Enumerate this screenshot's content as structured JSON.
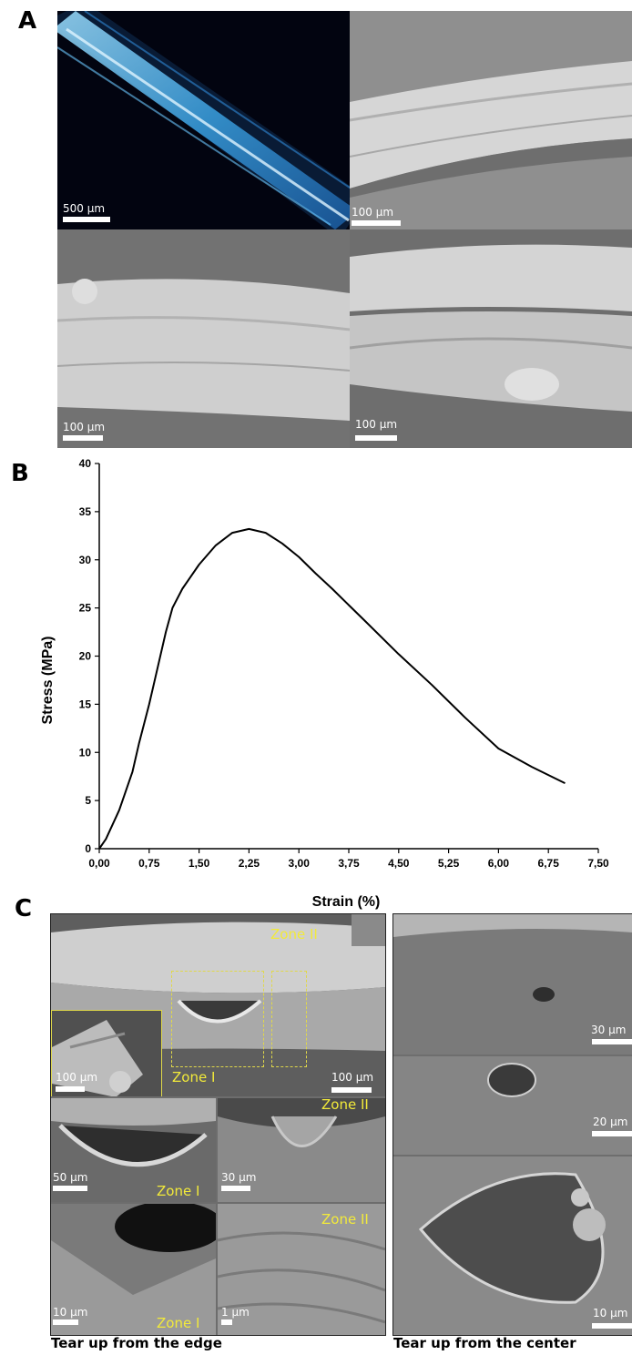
{
  "panels": {
    "a": {
      "letter": "A",
      "images": [
        {
          "scale": "500 µm",
          "kind": "optical"
        },
        {
          "scale": "100 µm",
          "kind": "sem"
        },
        {
          "scale": "100 µm",
          "kind": "sem"
        },
        {
          "scale": "100 µm",
          "kind": "sem"
        }
      ]
    },
    "b": {
      "letter": "B"
    },
    "c": {
      "letter": "C",
      "zone_labels": {
        "zone1": "Zone I",
        "zone2": "Zone II"
      },
      "left_images": [
        {
          "scale": "100 µm",
          "inset_scale": "100 µm"
        },
        {
          "scale": "50 µm"
        },
        {
          "scale": "30 µm"
        },
        {
          "scale": "10 µm"
        },
        {
          "scale": "1 µm"
        }
      ],
      "right_images": [
        {
          "scale": "30 µm"
        },
        {
          "scale": "20 µm"
        },
        {
          "scale": "10 µm"
        }
      ],
      "caption_left": "Tear up from the edge",
      "caption_right": "Tear up from the center"
    }
  },
  "colors": {
    "optical_fiber": "#4fb3e8",
    "zone_text": "#f2ea3a",
    "zone_box": "#e0d84a"
  },
  "chart_data": {
    "type": "line",
    "xlabel": "Strain (%)",
    "ylabel": "Stress (MPa)",
    "xlim": [
      0,
      7.5
    ],
    "ylim": [
      0,
      40
    ],
    "xticks": [
      "0,00",
      "0,75",
      "1,50",
      "2,25",
      "3,00",
      "3,75",
      "4,50",
      "5,25",
      "6,00",
      "6,75",
      "7,50"
    ],
    "yticks": [
      "0",
      "5",
      "10",
      "15",
      "20",
      "25",
      "30",
      "35",
      "40"
    ],
    "series": [
      {
        "x": [
          0.0,
          0.1,
          0.2,
          0.3,
          0.4,
          0.5,
          0.6,
          0.75,
          0.9,
          1.0,
          1.1,
          1.25,
          1.5,
          1.75,
          2.0,
          2.25,
          2.5,
          2.75,
          3.0,
          3.25,
          3.5,
          3.75,
          4.0,
          4.5,
          5.0,
          5.5,
          6.0,
          6.5,
          7.0
        ],
        "y": [
          0.0,
          1.0,
          2.5,
          4.0,
          6.0,
          8.0,
          11.0,
          15.0,
          19.5,
          22.5,
          25.0,
          27.0,
          29.5,
          31.5,
          32.8,
          33.2,
          32.8,
          31.7,
          30.3,
          28.6,
          27.0,
          25.3,
          23.6,
          20.2,
          17.0,
          13.6,
          10.4,
          8.5,
          6.8
        ]
      }
    ]
  }
}
